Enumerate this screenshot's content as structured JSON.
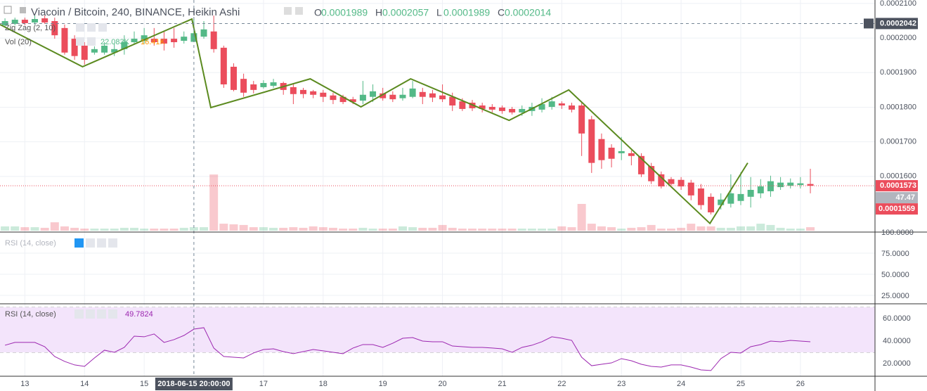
{
  "chart_data": {
    "type": "candlestick",
    "title": "Viacoin / Bitcoin, 240, BINANCE, Heikin Ashi",
    "readout": [
      {
        "label": "O",
        "value": 0.0001989
      },
      {
        "label": "H",
        "value": 0.0002057
      },
      {
        "label": "L",
        "value": 0.0001989
      },
      {
        "label": "C",
        "value": 0.0002014
      }
    ],
    "up_color": "#53b987",
    "down_color": "#eb4d5c",
    "grid": true,
    "xlim": [
      -0.5,
      87.5
    ],
    "xticks": [
      {
        "value": 2,
        "label": "13"
      },
      {
        "value": 8,
        "label": "14"
      },
      {
        "value": 14,
        "label": "15"
      },
      {
        "value": 26,
        "label": "17"
      },
      {
        "value": 32,
        "label": "18"
      },
      {
        "value": 38,
        "label": "19"
      },
      {
        "value": 44,
        "label": "20"
      },
      {
        "value": 50,
        "label": "21"
      },
      {
        "value": 56,
        "label": "22"
      },
      {
        "value": 62,
        "label": "23"
      },
      {
        "value": 68,
        "label": "24"
      },
      {
        "value": 74,
        "label": "25"
      },
      {
        "value": 80,
        "label": "26"
      }
    ],
    "ylim": [
      0.0001439,
      0.000211
    ],
    "yticks": [
      {
        "value": 0.00021,
        "label": "0.0002100"
      },
      {
        "value": 0.0002,
        "label": "0.0002000"
      },
      {
        "value": 0.00019,
        "label": "0.0001900"
      },
      {
        "value": 0.00018,
        "label": "0.0001800"
      },
      {
        "value": 0.00017,
        "label": "0.0001700"
      },
      {
        "value": 0.00016,
        "label": "0.0001600"
      }
    ],
    "open": [
      0.0002037,
      0.0002041,
      0.0002053,
      0.0002045,
      0.0002057,
      0.0002049,
      0.0002029,
      0.0001998,
      0.0001978,
      0.0001958,
      0.0001958,
      0.0001958,
      0.0001968,
      0.0001988,
      0.0001992,
      0.0001998,
      0.0001998,
      0.0001998,
      0.0001992,
      0.0001989,
      0.0002004,
      0.0002019,
      0.0001972,
      0.0001917,
      0.0001882,
      0.0001866,
      0.0001858,
      0.0001862,
      0.000187,
      0.0001858,
      0.000185,
      0.0001846,
      0.0001842,
      0.0001834,
      0.000183,
      0.0001823,
      0.0001819,
      0.000183,
      0.000184,
      0.0001836,
      0.0001826,
      0.000183,
      0.0001844,
      0.000184,
      0.0001834,
      0.000183,
      0.0001817,
      0.0001813,
      0.0001805,
      0.0001801,
      0.0001799,
      0.0001795,
      0.0001785,
      0.0001789,
      0.0001793,
      0.0001801,
      0.0001811,
      0.0001805,
      0.0001805,
      0.0001765,
      0.0001708,
      0.0001683,
      0.0001667,
      0.0001667,
      0.0001659,
      0.000163,
      0.0001606,
      0.0001592,
      0.000159,
      0.0001582,
      0.0001565,
      0.0001541,
      0.0001517,
      0.0001521,
      0.0001529,
      0.0001541,
      0.0001551,
      0.0001557,
      0.0001569,
      0.0001573,
      0.0001575,
      0.0001578
    ],
    "high": [
      0.0002057,
      0.0002059,
      0.0002059,
      0.0002065,
      0.0002065,
      0.0002059,
      0.0002039,
      0.0002008,
      0.0001988,
      0.0001976,
      0.0001988,
      0.0001984,
      0.0002008,
      0.0002019,
      0.0002029,
      0.0002029,
      0.0002019,
      0.0002029,
      0.0002019,
      0.0002057,
      0.0002049,
      0.0002065,
      0.0001978,
      0.0001927,
      0.0001897,
      0.0001876,
      0.0001878,
      0.0001882,
      0.0001874,
      0.0001866,
      0.0001856,
      0.000185,
      0.000185,
      0.0001842,
      0.0001836,
      0.000183,
      0.0001876,
      0.0001866,
      0.0001856,
      0.0001846,
      0.0001856,
      0.0001876,
      0.0001856,
      0.000185,
      0.0001866,
      0.0001842,
      0.0001826,
      0.0001821,
      0.0001813,
      0.0001809,
      0.0001805,
      0.0001801,
      0.0001805,
      0.0001813,
      0.0001826,
      0.000183,
      0.0001817,
      0.0001813,
      0.0001813,
      0.0001775,
      0.0001724,
      0.0001693,
      0.0001714,
      0.0001675,
      0.0001667,
      0.0001639,
      0.0001614,
      0.0001598,
      0.0001598,
      0.000159,
      0.0001578,
      0.0001551,
      0.0001551,
      0.0001606,
      0.0001612,
      0.0001598,
      0.0001592,
      0.0001602,
      0.0001598,
      0.0001594,
      0.0001598,
      0.0001622
    ],
    "low": [
      0.0002033,
      0.0002037,
      0.0002037,
      0.0002039,
      0.0002041,
      0.0001998,
      0.0001952,
      0.0001937,
      0.0001923,
      0.0001952,
      0.0001952,
      0.0001948,
      0.0001952,
      0.0001982,
      0.0001984,
      0.0001978,
      0.0001964,
      0.0001972,
      0.0001984,
      0.0001989,
      0.0001998,
      0.0001958,
      0.0001856,
      0.0001846,
      0.000183,
      0.000184,
      0.0001854,
      0.0001856,
      0.0001836,
      0.0001809,
      0.0001826,
      0.0001826,
      0.0001815,
      0.0001809,
      0.0001809,
      0.0001809,
      0.0001809,
      0.0001815,
      0.0001819,
      0.0001815,
      0.0001819,
      0.0001826,
      0.0001809,
      0.0001815,
      0.0001815,
      0.0001789,
      0.0001789,
      0.0001789,
      0.0001785,
      0.0001785,
      0.0001781,
      0.0001779,
      0.0001775,
      0.0001775,
      0.0001785,
      0.0001793,
      0.0001795,
      0.0001785,
      0.0001659,
      0.000161,
      0.0001622,
      0.0001626,
      0.0001647,
      0.0001632,
      0.0001598,
      0.0001578,
      0.0001565,
      0.0001569,
      0.0001561,
      0.0001531,
      0.0001504,
      0.000149,
      0.0001504,
      0.000151,
      0.0001517,
      0.000151,
      0.0001537,
      0.0001541,
      0.0001561,
      0.0001565,
      0.0001565,
      0.0001551
    ],
    "close": [
      0.0002049,
      0.0002053,
      0.0002043,
      0.0002055,
      0.0002045,
      0.0002008,
      0.0001958,
      0.0001948,
      0.0001937,
      0.0001968,
      0.0001978,
      0.0001968,
      0.0001988,
      0.0001998,
      0.0002008,
      0.0001988,
      0.0001984,
      0.0001988,
      0.0002004,
      0.0002014,
      0.0002025,
      0.0001968,
      0.0001866,
      0.000185,
      0.0001842,
      0.000185,
      0.000187,
      0.0001872,
      0.000185,
      0.0001838,
      0.0001838,
      0.0001836,
      0.000183,
      0.0001821,
      0.0001815,
      0.0001815,
      0.0001836,
      0.0001846,
      0.0001826,
      0.0001823,
      0.0001836,
      0.0001854,
      0.000183,
      0.0001828,
      0.0001823,
      0.0001805,
      0.0001795,
      0.0001797,
      0.0001795,
      0.0001793,
      0.0001789,
      0.0001785,
      0.0001795,
      0.0001801,
      0.0001809,
      0.0001817,
      0.0001805,
      0.0001793,
      0.0001724,
      0.0001639,
      0.0001647,
      0.0001651,
      0.0001673,
      0.0001659,
      0.0001606,
      0.0001586,
      0.0001571,
      0.0001578,
      0.0001571,
      0.0001545,
      0.0001517,
      0.0001496,
      0.0001533,
      0.0001551,
      0.0001549,
      0.0001561,
      0.0001571,
      0.0001586,
      0.0001582,
      0.0001582,
      0.000158,
      0.0001573
    ],
    "zigzag": {
      "name": "Zig Zag (2, 10)",
      "color": "#5b8a1f",
      "x": [
        -0.5,
        7.8,
        18.8,
        20.7,
        30.7,
        35.8,
        40.8,
        50.7,
        56.7,
        70.9,
        74.7
      ],
      "values": [
        0.0002039,
        0.0001917,
        0.0002055,
        0.0001799,
        0.0001882,
        0.0001801,
        0.0001882,
        0.0001762,
        0.000185,
        0.0001464,
        0.0001639
      ]
    },
    "volume": {
      "name": "Vol (20)",
      "readouts": [
        "22.083K",
        "16.41K"
      ],
      "readout_colors": [
        "#53b987",
        "#ff9800"
      ],
      "ylim": [
        0,
        400000
      ],
      "values": [
        27000,
        27000,
        22000,
        22000,
        18000,
        53000,
        27000,
        18000,
        13000,
        13000,
        13000,
        13000,
        18000,
        18000,
        13000,
        13000,
        13000,
        13000,
        18000,
        22083,
        22000,
        355000,
        44000,
        40000,
        36000,
        22000,
        22000,
        18000,
        18000,
        22000,
        18000,
        27000,
        22000,
        18000,
        13000,
        13000,
        18000,
        13000,
        13000,
        13000,
        27000,
        22000,
        18000,
        18000,
        36000,
        18000,
        13000,
        13000,
        13000,
        13000,
        13000,
        13000,
        13000,
        13000,
        13000,
        13000,
        27000,
        22000,
        169000,
        44000,
        27000,
        22000,
        13000,
        18000,
        22000,
        36000,
        13000,
        13000,
        18000,
        44000,
        27000,
        27000,
        18000,
        18000,
        27000,
        27000,
        44000,
        36000,
        18000,
        13000,
        13000,
        22000
      ]
    },
    "crosshair": {
      "x": 19,
      "label": "2018-06-15 20:00:00",
      "price": 0.0002042
    },
    "last_price": {
      "value": 0.0001573,
      "color": "#eb4d5c"
    },
    "side_labels": [
      {
        "value": 47.47,
        "color": "#b2b5be"
      },
      {
        "value": 0.0001559,
        "color": "#eb4d5c"
      }
    ],
    "rsi_empty": {
      "name": "RSI (14, close)",
      "ylim": [
        15,
        100
      ],
      "yticks": [
        {
          "value": 100,
          "label": "100.0000"
        },
        {
          "value": 75,
          "label": "75.0000"
        },
        {
          "value": 50,
          "label": "50.0000"
        },
        {
          "value": 25,
          "label": "25.0000"
        }
      ]
    },
    "rsi": {
      "name": "RSI (14, close)",
      "readout": 49.7824,
      "color": "#9c27b0",
      "band": [
        30,
        70
      ],
      "ylim": [
        8.75,
        72.5
      ],
      "yticks": [
        {
          "value": 60,
          "label": "60.0000"
        },
        {
          "value": 40,
          "label": "40.0000"
        },
        {
          "value": 20,
          "label": "20.0000"
        }
      ],
      "values": [
        36.3,
        38.8,
        38.8,
        38.8,
        35,
        26.3,
        21.9,
        18.8,
        17.5,
        25,
        31.9,
        30,
        34.4,
        44.4,
        43.8,
        46.3,
        38.8,
        41.3,
        45,
        50.6,
        51.9,
        33.8,
        26.3,
        25.6,
        25,
        29.4,
        32.5,
        33.1,
        30.6,
        28.8,
        30.6,
        32.5,
        31.3,
        30,
        28.8,
        33.8,
        36.9,
        36.9,
        34.4,
        38.1,
        42.5,
        43.1,
        40,
        39.4,
        39.4,
        35.6,
        35,
        34.4,
        34.4,
        33.8,
        33.1,
        30,
        34.4,
        36.3,
        39.4,
        43.8,
        42.5,
        40.6,
        25.6,
        18.1,
        19.4,
        20.6,
        24.4,
        22.5,
        19.4,
        17.5,
        16.9,
        18.8,
        18.8,
        16.9,
        14.4,
        13.8,
        24.4,
        30,
        29.4,
        35,
        36.9,
        40,
        39.4,
        40.6,
        40,
        39.4
      ]
    }
  }
}
